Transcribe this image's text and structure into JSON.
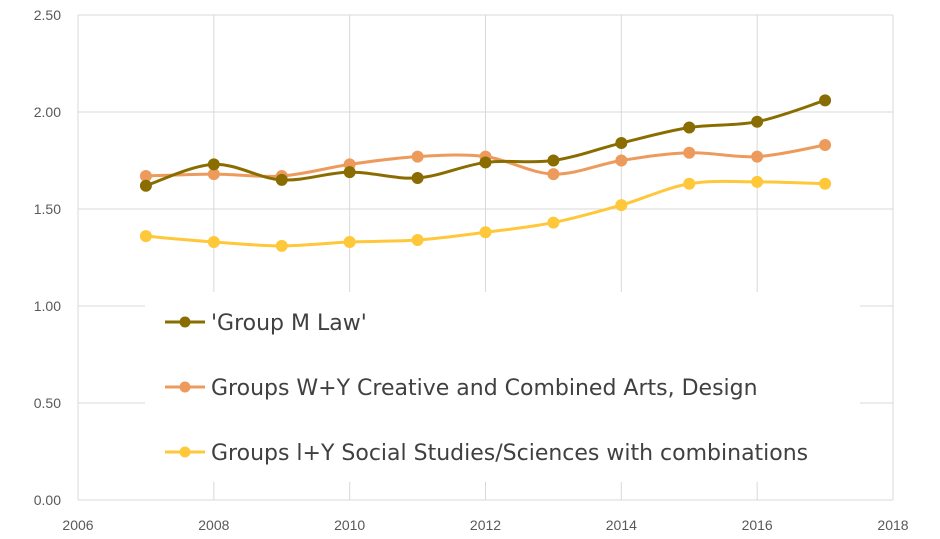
{
  "chart_data": {
    "type": "line",
    "title": "",
    "xlabel": "",
    "ylabel": "",
    "xlim": [
      2006,
      2018
    ],
    "ylim": [
      0,
      2.5
    ],
    "x_ticks": [
      2006,
      2008,
      2010,
      2012,
      2014,
      2016,
      2018
    ],
    "x_tick_labels": [
      "2006",
      "2008",
      "2010",
      "2012",
      "2014",
      "2016",
      "2018"
    ],
    "y_ticks": [
      0,
      0.5,
      1.0,
      1.5,
      2.0,
      2.5
    ],
    "y_tick_labels": [
      "0.00",
      "0.50",
      "1.00",
      "1.50",
      "2.00",
      "2.50"
    ],
    "grid": true,
    "smooth": true,
    "legend_position": "bottom-left inside plot area",
    "x": [
      2007,
      2008,
      2009,
      2010,
      2011,
      2012,
      2013,
      2014,
      2015,
      2016,
      2017
    ],
    "series": [
      {
        "name": "'Group M Law'",
        "color": "#8a6d00",
        "values": [
          1.62,
          1.73,
          1.65,
          1.69,
          1.66,
          1.74,
          1.75,
          1.84,
          1.92,
          1.95,
          2.06
        ]
      },
      {
        "name": "Groups W+Y Creative and Combined Arts, Design",
        "color": "#ed9b5c",
        "values": [
          1.67,
          1.68,
          1.67,
          1.73,
          1.77,
          1.77,
          1.68,
          1.75,
          1.79,
          1.77,
          1.83
        ]
      },
      {
        "name": "Groups l+Y Social Studies/Sciences with combinations",
        "color": "#ffc83a",
        "values": [
          1.36,
          1.33,
          1.31,
          1.33,
          1.34,
          1.38,
          1.43,
          1.52,
          1.63,
          1.64,
          1.63
        ]
      }
    ]
  }
}
